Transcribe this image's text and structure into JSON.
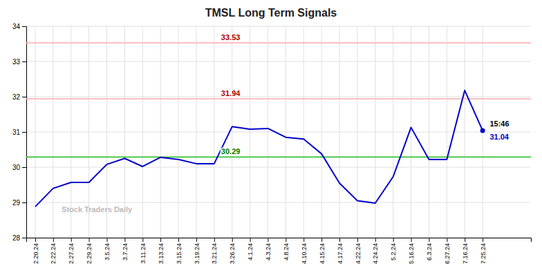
{
  "chart_data": {
    "type": "line",
    "title": "TMSL Long Term Signals",
    "categories": [
      "2.20.24",
      "2.22.24",
      "2.27.24",
      "2.29.24",
      "3.5.24",
      "3.7.24",
      "3.11.24",
      "3.13.24",
      "3.15.24",
      "3.19.24",
      "3.21.24",
      "3.26.24",
      "4.1.24",
      "4.3.24",
      "4.8.24",
      "4.10.24",
      "4.15.24",
      "4.17.24",
      "4.22.24",
      "4.24.24",
      "5.2.24",
      "5.16.24",
      "6.3.24",
      "6.27.24",
      "7.16.24",
      "7.25.24"
    ],
    "values": [
      28.88,
      29.4,
      29.57,
      29.57,
      30.08,
      30.25,
      30.02,
      30.28,
      30.22,
      30.1,
      30.1,
      31.15,
      31.08,
      31.1,
      30.85,
      30.8,
      30.38,
      29.55,
      29.05,
      28.98,
      29.73,
      31.13,
      30.22,
      30.22,
      32.18,
      31.04
    ],
    "color": "#0000CC",
    "ylim": [
      28,
      34
    ],
    "yticks": [
      28,
      29,
      30,
      31,
      32,
      33,
      34
    ],
    "grid": true,
    "reference_lines": [
      {
        "value": 33.53,
        "label": "33.53",
        "color": "#FFAAAA",
        "label_color": "#AA0000"
      },
      {
        "value": 31.94,
        "label": "31.94",
        "color": "#FFAAAA",
        "label_color": "#AA0000"
      },
      {
        "value": 30.29,
        "label": "30.29",
        "color": "#22BB22",
        "label_color": "#007700"
      }
    ],
    "value_labels": [
      null,
      null,
      null,
      null,
      null,
      null,
      null,
      null,
      null,
      null,
      null,
      null,
      null,
      null,
      null,
      null,
      null,
      null,
      null,
      null,
      null,
      null,
      null,
      null,
      null,
      "31.04"
    ],
    "annotation": "15:46",
    "watermark": "Stock Traders Daily"
  }
}
